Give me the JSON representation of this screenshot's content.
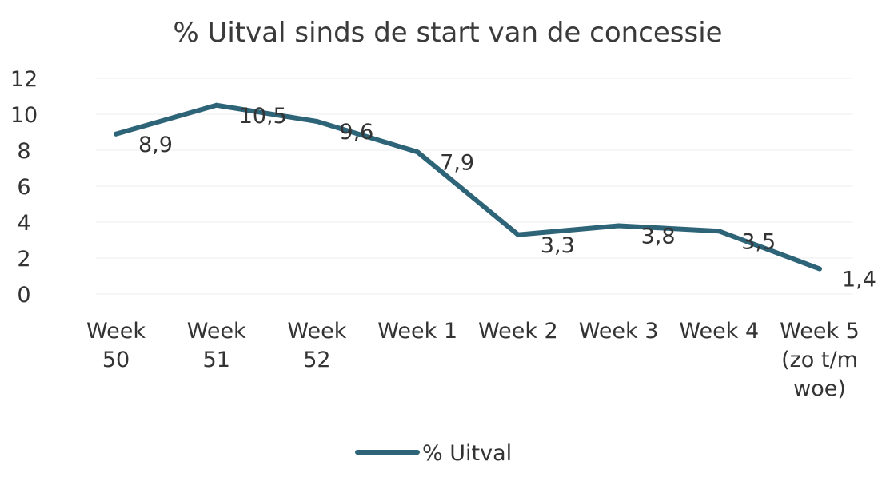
{
  "chart_data": {
    "type": "line",
    "title": "% Uitval sinds de start van de concessie",
    "categories": [
      [
        "Week",
        "50"
      ],
      [
        "Week",
        "51"
      ],
      [
        "Week",
        "52"
      ],
      [
        "Week 1"
      ],
      [
        "Week 2"
      ],
      [
        "Week 3"
      ],
      [
        "Week 4"
      ],
      [
        "Week 5",
        "(zo t/m",
        "woe)"
      ]
    ],
    "series": [
      {
        "name": "% Uitval",
        "values": [
          8.9,
          10.5,
          9.6,
          7.9,
          3.3,
          3.8,
          3.5,
          1.4
        ],
        "labels": [
          "8,9",
          "10,5",
          "9,6",
          "7,9",
          "3,3",
          "3,8",
          "3,5",
          "1,4"
        ]
      }
    ],
    "ylim": [
      0,
      12
    ],
    "yticks": [
      0,
      2,
      4,
      6,
      8,
      10,
      12
    ],
    "grid": true,
    "legend": "bottom",
    "colors": {
      "line": "#2e6478"
    }
  }
}
